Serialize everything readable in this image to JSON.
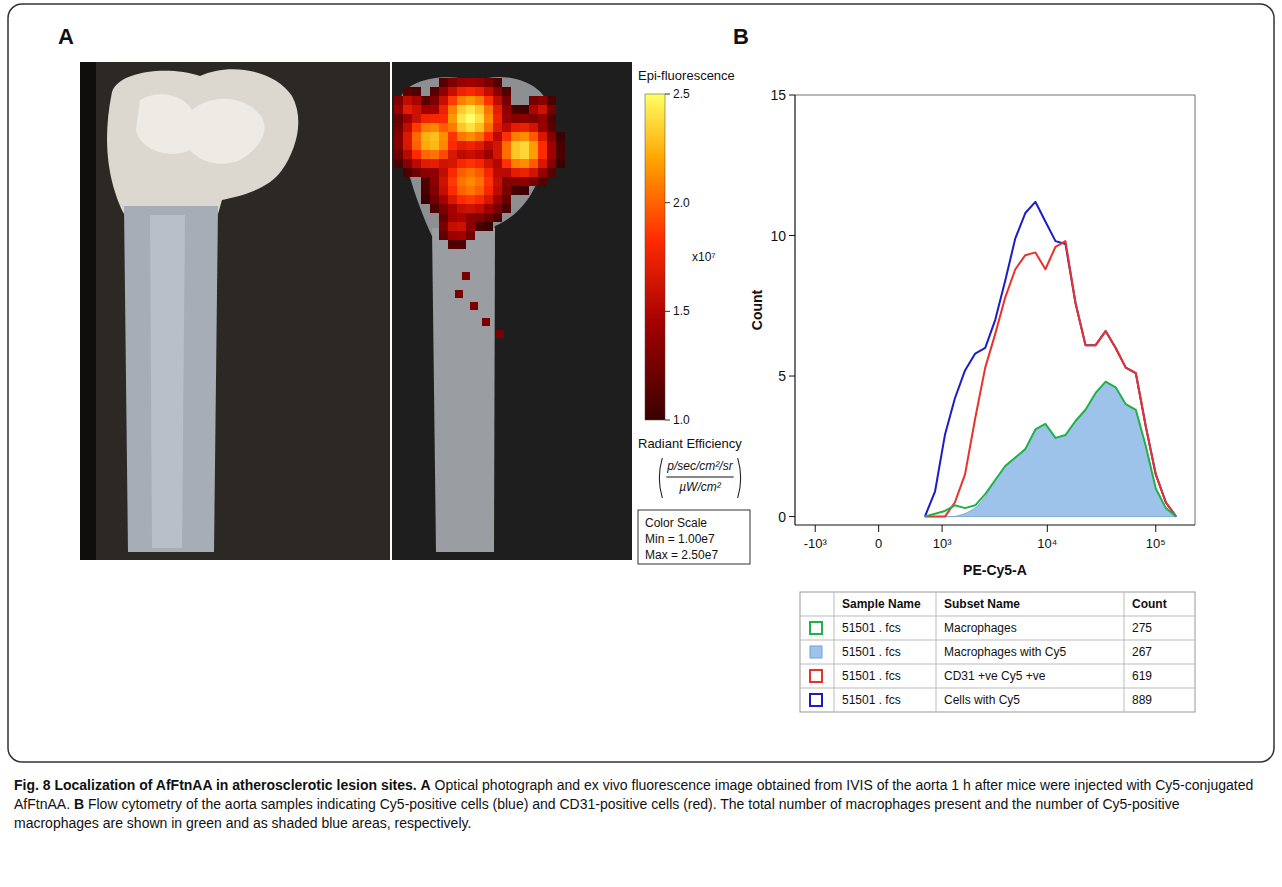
{
  "figure": {
    "panel_letters": [
      "A",
      "B"
    ]
  },
  "panel_a": {
    "colorbar": {
      "title": "Epi-fluorescence",
      "range": [
        1,
        2.5
      ],
      "ticks": [
        {
          "value": 1,
          "label": "1.0"
        },
        1.5,
        {
          "value": 2,
          "label": "2.0"
        },
        2.5
      ],
      "multiplier": "x10⁷",
      "unit_title": "Radiant Efficiency",
      "unit_numerator": "p/sec/cm²/sr",
      "unit_denominator": "µW/cm²"
    },
    "color_scale": {
      "title": "Color Scale",
      "min": "Min = 1.00e7",
      "max": "Max = 2.50e7"
    }
  },
  "chart_data": {
    "type": "line",
    "x_label": "PE-Cy5-A",
    "y_label": "Count",
    "x": [
      640,
      840,
      1070,
      1350,
      1700,
      2130,
      2650,
      3290,
      4080,
      5060,
      6260,
      7760,
      9600,
      11900,
      14700,
      18200,
      22500,
      27900,
      34500,
      42700,
      52900,
      65500,
      81000,
      100000,
      124000,
      154000
    ],
    "xlim": [
      -1600,
      230000
    ],
    "xticks": [
      {
        "value": -1000,
        "label": "-10³"
      },
      0,
      {
        "value": 1000,
        "label": "10³"
      },
      {
        "value": 10000,
        "label": "10⁴"
      },
      {
        "value": 100000,
        "label": "10⁵"
      }
    ],
    "ylim": [
      -0.3,
      15
    ],
    "yticks": [
      0,
      5,
      10,
      15
    ],
    "log": "x",
    "grid": false,
    "legend": "bottom",
    "legend_headers": [
      "Sample Name",
      "Subset Name",
      "Count"
    ],
    "series": [
      {
        "name": "Macrophages",
        "color": "#22b04a",
        "type": "line",
        "sample": "51501 . fcs",
        "count": 275,
        "values": [
          0,
          0.1,
          0.2,
          0.4,
          0.3,
          0.4,
          0.8,
          1.3,
          1.8,
          2.1,
          2.4,
          3.1,
          3.3,
          2.8,
          2.9,
          3.4,
          3.8,
          4.4,
          4.8,
          4.6,
          4.0,
          3.8,
          2.5,
          1.0,
          0.3,
          0
        ]
      },
      {
        "name": "Macrophages with Cy5",
        "color": "#9ec3ea",
        "type": "area",
        "sample": "51501 . fcs",
        "count": 267,
        "values": [
          0,
          0,
          0,
          0,
          0.1,
          0.3,
          0.7,
          1.3,
          1.8,
          2.1,
          2.4,
          3.1,
          3.3,
          2.8,
          2.9,
          3.4,
          3.8,
          4.4,
          4.8,
          4.6,
          4.0,
          3.8,
          2.5,
          1.0,
          0.3,
          0
        ]
      },
      {
        "name": "CD31 +ve Cy5 +ve",
        "color": "#e8322a",
        "type": "line",
        "sample": "51501 . fcs",
        "count": 619,
        "values": [
          0,
          0,
          0,
          0.5,
          1.5,
          3.5,
          5.3,
          6.5,
          7.8,
          8.8,
          9.3,
          9.4,
          8.8,
          9.6,
          9.8,
          7.6,
          6.1,
          6.1,
          6.6,
          6.0,
          5.3,
          5.1,
          3.2,
          1.5,
          0.5,
          0
        ]
      },
      {
        "name": "Cells with Cy5",
        "color": "#1c1cc8",
        "type": "line",
        "sample": "51501 . fcs",
        "count": 889,
        "values": [
          0,
          0.9,
          2.9,
          4.2,
          5.2,
          5.8,
          6.0,
          7.0,
          8.4,
          9.9,
          10.8,
          11.2,
          10.5,
          9.8,
          9.7,
          7.6,
          6.1,
          6.1,
          6.6,
          6.0,
          5.3,
          5.1,
          3.2,
          1.5,
          0.5,
          0
        ]
      }
    ]
  },
  "caption": {
    "title": "Fig. 8 Localization of AfFtnAA in atherosclerotic lesion sites.",
    "parts": [
      {
        "letter": "A",
        "text": "Optical photograph and ex vivo fluorescence image obtained from IVIS of the aorta 1 h after mice were injected with Cy5-conjugated AfFtnAA."
      },
      {
        "letter": "B",
        "text": "Flow cytometry of the aorta samples indicating Cy5-positive cells (blue) and CD31-positive cells (red). The total number of macrophages present and the number of Cy5-positive macrophages are shown in green and as shaded blue areas, respectively."
      }
    ]
  }
}
